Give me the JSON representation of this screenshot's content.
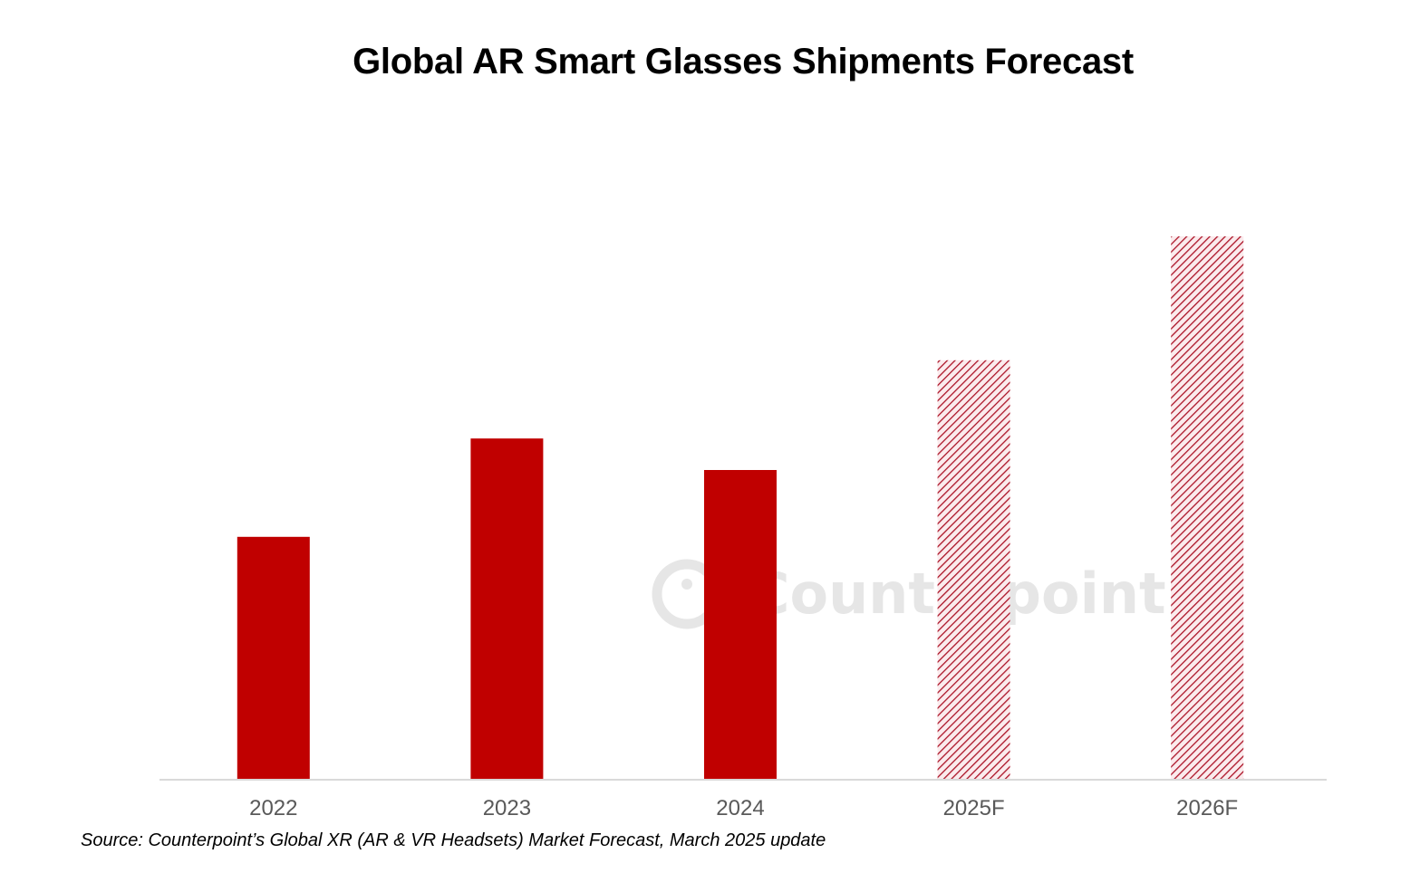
{
  "chart_data": {
    "type": "bar",
    "title": "Global AR Smart Glasses Shipments Forecast",
    "xlabel": "",
    "ylabel": "",
    "categories": [
      "2022",
      "2023",
      "2024",
      "2025F",
      "2026F"
    ],
    "values": [
      44.7,
      62.8,
      57.0,
      77.2,
      100
    ],
    "value_note": "No y-axis shown; values are relative (2026F = 100)",
    "forecast": [
      false,
      false,
      false,
      true,
      true
    ],
    "ylim": [
      0,
      100
    ],
    "grid": false,
    "legend": "none",
    "colors": {
      "actual": "#c00000",
      "forecast_hatch": "#a50015",
      "axis": "#d9d9d9",
      "tick_text": "#595959"
    }
  },
  "watermark": {
    "text": "Counterpoint",
    "color": "#e6e6e6"
  },
  "footnote": "Source: Counterpoint’s Global XR (AR & VR Headsets) Market Forecast, March 2025 update"
}
